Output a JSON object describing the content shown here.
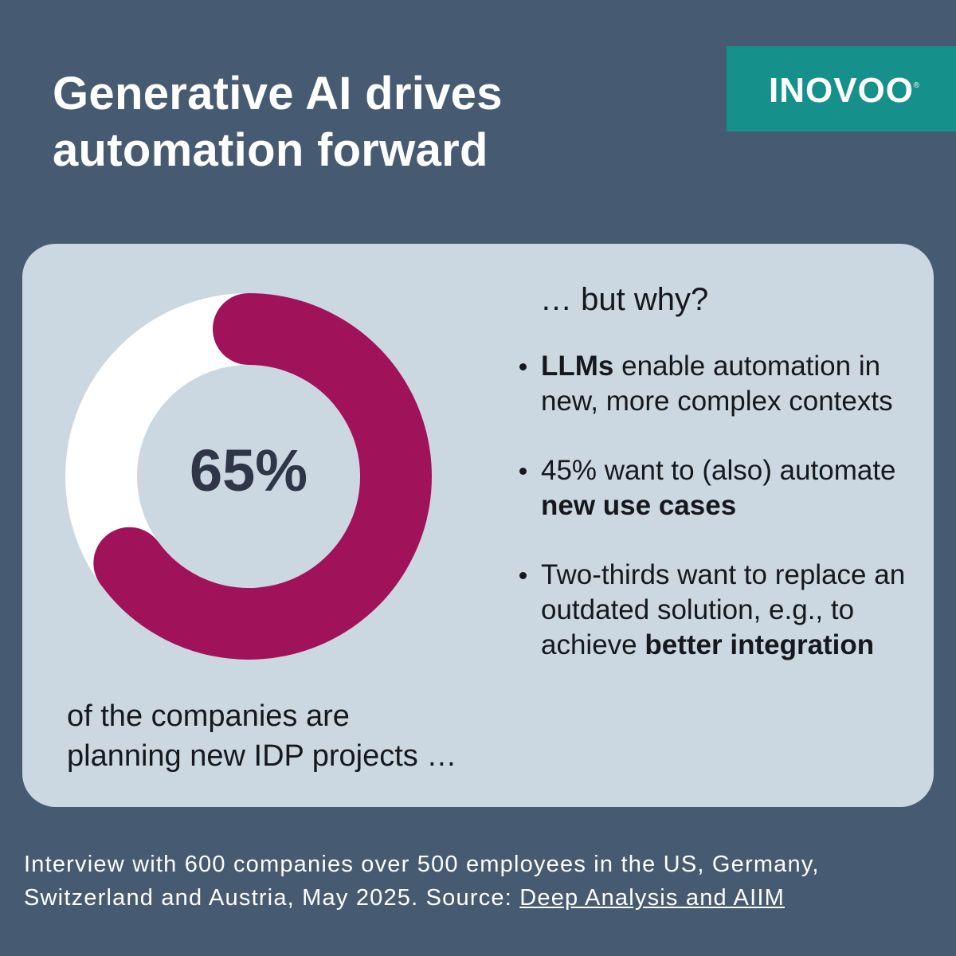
{
  "headline": {
    "line1": "Generative AI drives",
    "line2": "automation forward"
  },
  "logo": {
    "text": "INOVOO",
    "registered": "®"
  },
  "chart_data": {
    "type": "pie",
    "variant": "donut",
    "values": [
      65,
      35
    ],
    "center_label": "65%",
    "colors": [
      "#a0135b",
      "#ffffff"
    ]
  },
  "caption": {
    "line1": "of the companies are",
    "line2": "planning new IDP projects …"
  },
  "why": {
    "title": "… but why?",
    "bullets": [
      {
        "bold": "LLMs",
        "text": " enable automation in new, more complex contexts"
      },
      {
        "pre": "45% want to (also) automate ",
        "bold": "new use cases"
      },
      {
        "pre": "Two-thirds want to replace an outdated solution, e.g., to achieve ",
        "bold": "better integration"
      }
    ]
  },
  "source": {
    "text": "Interview with 600 companies over 500 employees in the US, Germany, Switzerland and Austria, May 2025. Source: ",
    "link_text": "Deep Analysis and AIIM"
  },
  "colors": {
    "background": "#465b72",
    "card": "#cbd8e2",
    "accent": "#a0135b",
    "brand": "#15908b"
  }
}
